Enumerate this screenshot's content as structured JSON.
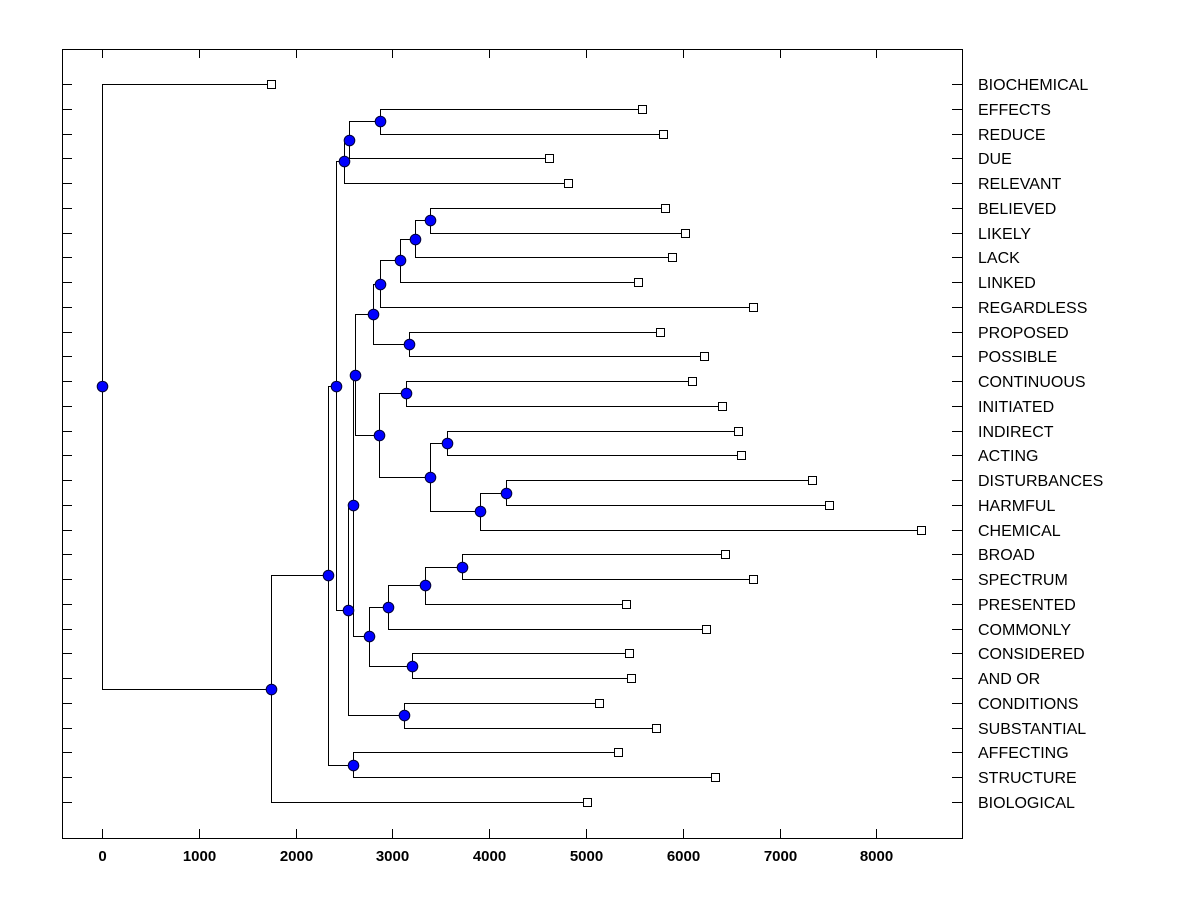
{
  "chart_data": {
    "type": "dendrogram",
    "title": "",
    "xlabel": "",
    "ylabel": "",
    "xlim": [
      -413,
      8884
    ],
    "x_ticks": [
      0,
      1000,
      2000,
      3000,
      4000,
      5000,
      6000,
      7000,
      8000
    ],
    "x_tick_labels": [
      "0",
      "1000",
      "2000",
      "3000",
      "4000",
      "5000",
      "6000",
      "7000",
      "8000"
    ],
    "grid": false,
    "orientation": "horizontal, leaves on right",
    "node_color": "#0000ff",
    "leaves": [
      {
        "id": "BIOCHEMICAL",
        "label": "BIOCHEMICAL",
        "x": 1750
      },
      {
        "id": "EFFECTS",
        "label": "EFFECTS",
        "x": 5580
      },
      {
        "id": "REDUCE",
        "label": "REDUCE",
        "x": 5800
      },
      {
        "id": "DUE",
        "label": "DUE",
        "x": 4620
      },
      {
        "id": "RELEVANT",
        "label": "RELEVANT",
        "x": 4810
      },
      {
        "id": "BELIEVED",
        "label": "BELIEVED",
        "x": 5820
      },
      {
        "id": "LIKELY",
        "label": "LIKELY",
        "x": 6020
      },
      {
        "id": "LACK",
        "label": "LACK",
        "x": 5890
      },
      {
        "id": "LINKED",
        "label": "LINKED",
        "x": 5540
      },
      {
        "id": "REGARDLESS",
        "label": "REGARDLESS",
        "x": 6730
      },
      {
        "id": "PROPOSED",
        "label": "PROPOSED",
        "x": 5760
      },
      {
        "id": "POSSIBLE",
        "label": "POSSIBLE",
        "x": 6220
      },
      {
        "id": "CONTINUOUS",
        "label": "CONTINUOUS",
        "x": 6100
      },
      {
        "id": "INITIATED",
        "label": "INITIATED",
        "x": 6400
      },
      {
        "id": "INDIRECT",
        "label": "INDIRECT",
        "x": 6570
      },
      {
        "id": "ACTING",
        "label": "ACTING",
        "x": 6600
      },
      {
        "id": "DISTURBANCES",
        "label": "DISTURBANCES",
        "x": 7330
      },
      {
        "id": "HARMFUL",
        "label": "HARMFUL",
        "x": 7510
      },
      {
        "id": "CHEMICAL",
        "label": "CHEMICAL",
        "x": 8460
      },
      {
        "id": "BROAD",
        "label": "BROAD",
        "x": 6440
      },
      {
        "id": "SPECTRUM",
        "label": "SPECTRUM",
        "x": 6730
      },
      {
        "id": "PRESENTED",
        "label": "PRESENTED",
        "x": 5410
      },
      {
        "id": "COMMONLY",
        "label": "COMMONLY",
        "x": 6240
      },
      {
        "id": "CONSIDERED",
        "label": "CONSIDERED",
        "x": 5440
      },
      {
        "id": "AND_OR",
        "label": "AND OR",
        "x": 5460
      },
      {
        "id": "CONDITIONS",
        "label": "CONDITIONS",
        "x": 5130
      },
      {
        "id": "SUBSTANTIAL",
        "label": "SUBSTANTIAL",
        "x": 5720
      },
      {
        "id": "AFFECTING",
        "label": "AFFECTING",
        "x": 5330
      },
      {
        "id": "STRUCTURE",
        "label": "STRUCTURE",
        "x": 6330
      },
      {
        "id": "BIOLOGICAL",
        "label": "BIOLOGICAL",
        "x": 5010
      }
    ],
    "merges": [
      {
        "id": "n1",
        "x": 2870,
        "children": [
          "EFFECTS",
          "REDUCE"
        ]
      },
      {
        "id": "n2",
        "x": 2550,
        "children": [
          "n1",
          "DUE"
        ]
      },
      {
        "id": "n3",
        "x": 2500,
        "children": [
          "n2",
          "RELEVANT"
        ]
      },
      {
        "id": "n4",
        "x": 3390,
        "children": [
          "BELIEVED",
          "LIKELY"
        ]
      },
      {
        "id": "n5",
        "x": 3230,
        "children": [
          "n4",
          "LACK"
        ]
      },
      {
        "id": "n6",
        "x": 3080,
        "children": [
          "n5",
          "LINKED"
        ]
      },
      {
        "id": "n7",
        "x": 2870,
        "children": [
          "n6",
          "REGARDLESS"
        ]
      },
      {
        "id": "n8",
        "x": 3170,
        "children": [
          "PROPOSED",
          "POSSIBLE"
        ]
      },
      {
        "id": "n9",
        "x": 2800,
        "children": [
          "n7",
          "n8"
        ]
      },
      {
        "id": "n10",
        "x": 3140,
        "children": [
          "CONTINUOUS",
          "INITIATED"
        ]
      },
      {
        "id": "n11",
        "x": 3560,
        "children": [
          "INDIRECT",
          "ACTING"
        ]
      },
      {
        "id": "n12",
        "x": 4170,
        "children": [
          "DISTURBANCES",
          "HARMFUL"
        ]
      },
      {
        "id": "n13",
        "x": 3900,
        "children": [
          "n12",
          "CHEMICAL"
        ]
      },
      {
        "id": "n14",
        "x": 3390,
        "children": [
          "n11",
          "n13"
        ]
      },
      {
        "id": "n15",
        "x": 2860,
        "children": [
          "n10",
          "n14"
        ]
      },
      {
        "id": "n16",
        "x": 2610,
        "children": [
          "n9",
          "n15"
        ]
      },
      {
        "id": "n17",
        "x": 3720,
        "children": [
          "BROAD",
          "SPECTRUM"
        ]
      },
      {
        "id": "n18",
        "x": 3340,
        "children": [
          "n17",
          "PRESENTED"
        ]
      },
      {
        "id": "n19",
        "x": 2950,
        "children": [
          "n18",
          "COMMONLY"
        ]
      },
      {
        "id": "n20",
        "x": 3200,
        "children": [
          "CONSIDERED",
          "AND_OR"
        ]
      },
      {
        "id": "n21",
        "x": 2760,
        "children": [
          "n19",
          "n20"
        ]
      },
      {
        "id": "n22",
        "x": 2590,
        "children": [
          "n16",
          "n21"
        ]
      },
      {
        "id": "n23",
        "x": 3120,
        "children": [
          "CONDITIONS",
          "SUBSTANTIAL"
        ]
      },
      {
        "id": "n24",
        "x": 2540,
        "children": [
          "n22",
          "n23"
        ]
      },
      {
        "id": "n25",
        "x": 2420,
        "children": [
          "n3",
          "n24"
        ]
      },
      {
        "id": "n26",
        "x": 2590,
        "children": [
          "AFFECTING",
          "STRUCTURE"
        ]
      },
      {
        "id": "n27",
        "x": 2330,
        "children": [
          "n25",
          "n26"
        ]
      },
      {
        "id": "n28",
        "x": 1750,
        "children": [
          "n27",
          "BIOLOGICAL"
        ]
      },
      {
        "id": "root",
        "x": 0,
        "children": [
          "BIOCHEMICAL",
          "n28"
        ]
      }
    ]
  }
}
